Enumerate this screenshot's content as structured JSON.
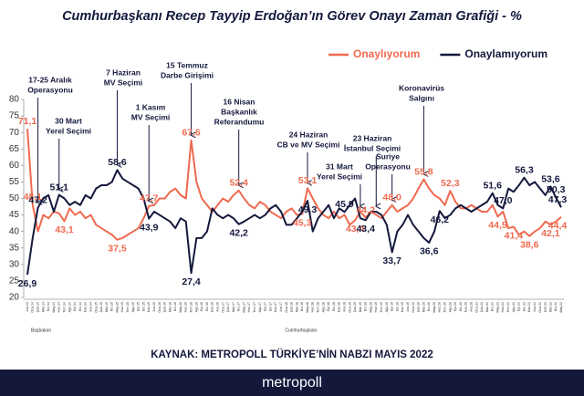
{
  "chart_data": {
    "type": "line",
    "title": "Cumhurbaşkanı Recep Tayyip Erdoğan’ın Görev Onayı Zaman Grafiği - %",
    "source": "KAYNAK: METROPOLL TÜRKİYE’NİN NABZI MAYIS 2022",
    "brand": "metropoll",
    "legend": "top-right",
    "ylim": [
      20,
      80
    ],
    "yticks": [
      20,
      25,
      30,
      35,
      40,
      45,
      50,
      55,
      60,
      65,
      70,
      75,
      80
    ],
    "period_labels": [
      "Başbakan",
      "Cumhurbaşkanı"
    ],
    "categories": [
      "Ara.13",
      "Oca.14",
      "Şub.14",
      "Mar.14",
      "Nis.14",
      "May.14",
      "Haz.14",
      "Tem.14",
      "Ağu.14",
      "Eyl.14",
      "Eki.14",
      "Kas.14",
      "Ara.14",
      "Oca.15",
      "Şub.15",
      "Mar.15",
      "Nis.15",
      "May.15",
      "Haz.15",
      "Tem.15",
      "Ağu.15",
      "Eyl.15",
      "Eki.15",
      "Kas.15",
      "Ara.15",
      "Oca.16",
      "Şub.16",
      "Mar.16",
      "Nis.16",
      "May.16",
      "Haz.16",
      "Tem.16",
      "Ağu.16",
      "Eyl.16",
      "Eki.16",
      "Kas.16",
      "Ara.16",
      "Oca.17",
      "Şub.17",
      "Mar.17",
      "Nis.17",
      "May.17",
      "Haz.17",
      "Tem.17",
      "Ağu.17",
      "Eyl.17",
      "Eki.17",
      "Kas.17",
      "Ara.17",
      "Oca.18",
      "Şub.18",
      "Mar.18",
      "Nis.18",
      "May.18",
      "Haz.18",
      "Tem.18",
      "Ağu.18",
      "Eyl.18",
      "Eki.18",
      "Kas.18",
      "Ara.18",
      "Oca.19",
      "Şub.19",
      "Mar.19",
      "Nis.19",
      "May.19",
      "Haz.19",
      "Tem.19",
      "Ağu.19",
      "Eyl.19",
      "Eki.19",
      "Kas.19",
      "Ara.19",
      "Oca.20",
      "Şub.20",
      "Mar.20",
      "Nis.20",
      "May.20",
      "Haz.20",
      "Tem.20",
      "Ağu.20",
      "Eyl.20",
      "Eki.20",
      "Kas.20",
      "Ara.20",
      "Oca.21",
      "Şub.21",
      "Mar.21",
      "Nis.21",
      "May.21",
      "Haz.21",
      "Tem.21",
      "Ağu.21",
      "Eyl.21",
      "Eki.21",
      "Kas.21",
      "Ara.21",
      "Oca.22",
      "Şub.22",
      "Mar.22",
      "Nis.22",
      "May.22"
    ],
    "series": [
      {
        "name": "Onaylıyorum",
        "color": "#ef6a50",
        "values": [
          71.1,
          48.1,
          40,
          45,
          44,
          46,
          45.5,
          43.1,
          47,
          45,
          46,
          44,
          45,
          42,
          41,
          40,
          39,
          37.5,
          38,
          39,
          40,
          41,
          44,
          47.7,
          48,
          50,
          50,
          52,
          53,
          51,
          50,
          67.6,
          55,
          50,
          48,
          46,
          48,
          50,
          49,
          51,
          52.4,
          50,
          48,
          47,
          49,
          48,
          46,
          45,
          44,
          46,
          47,
          45,
          45.3,
          53.1,
          50,
          47,
          45,
          44,
          46,
          44,
          45,
          42,
          43.4,
          46,
          44.2,
          46,
          45,
          44,
          46,
          48.0,
          46,
          47,
          48,
          50,
          53,
          55.8,
          53,
          51,
          50,
          48,
          52.3,
          49,
          47,
          47,
          48,
          47,
          46,
          46,
          48,
          44.5,
          46,
          41,
          41.4,
          39,
          40,
          38.6,
          40,
          41,
          43,
          42.1,
          43,
          44.4
        ],
        "value_labels": [
          "71,1",
          "48,1",
          null,
          null,
          null,
          null,
          null,
          "43,1",
          null,
          null,
          null,
          null,
          null,
          null,
          null,
          null,
          null,
          "37,5",
          null,
          null,
          null,
          null,
          null,
          "47,7",
          null,
          null,
          null,
          null,
          null,
          null,
          null,
          "67,6",
          null,
          null,
          null,
          null,
          null,
          null,
          null,
          null,
          "52,4",
          null,
          null,
          null,
          null,
          null,
          null,
          null,
          null,
          null,
          null,
          null,
          "45,3",
          "53,1",
          null,
          null,
          null,
          null,
          null,
          null,
          null,
          null,
          "43,4",
          null,
          "44,2",
          null,
          null,
          null,
          null,
          "48,0",
          null,
          null,
          null,
          null,
          null,
          "55,8",
          null,
          null,
          null,
          null,
          "52,3",
          null,
          null,
          null,
          null,
          null,
          null,
          null,
          null,
          "44,5",
          null,
          null,
          "41,4",
          null,
          null,
          "38,6",
          null,
          null,
          null,
          "42,1",
          null,
          "44,4"
        ]
      },
      {
        "name": "Onaylamıyorum",
        "color": "#14193c",
        "values": [
          26.9,
          38,
          47.2,
          50,
          51,
          46,
          51.1,
          50,
          48,
          49,
          48,
          51,
          50,
          53,
          54,
          54,
          55,
          58.6,
          56,
          55,
          54,
          53,
          50,
          43.9,
          46,
          45,
          44,
          43,
          41,
          44,
          43,
          27.4,
          38,
          38,
          40,
          47,
          45,
          44,
          45,
          44,
          42.2,
          43,
          44,
          45,
          44,
          45,
          47,
          48,
          46,
          42,
          42,
          44,
          46,
          49.3,
          40,
          44,
          46,
          48,
          44,
          47,
          45.9,
          48,
          50,
          44,
          43.4,
          46,
          46,
          45,
          42,
          33.7,
          40,
          42,
          45,
          42,
          40,
          38,
          36.6,
          40,
          46.2,
          44,
          45,
          47,
          48,
          47,
          46,
          47,
          48,
          49,
          51.6,
          48,
          47.0,
          53,
          52,
          54,
          56.3,
          54,
          55,
          53,
          51,
          53.6,
          50.3,
          47.3
        ],
        "value_labels": [
          "26,9",
          null,
          "47,2",
          null,
          null,
          null,
          "51,1",
          null,
          null,
          null,
          null,
          null,
          null,
          null,
          null,
          null,
          null,
          "58,6",
          null,
          null,
          null,
          null,
          null,
          "43,9",
          null,
          null,
          null,
          null,
          null,
          null,
          null,
          "27,4",
          null,
          null,
          null,
          null,
          null,
          null,
          null,
          null,
          "42,2",
          null,
          null,
          null,
          null,
          null,
          null,
          null,
          null,
          null,
          null,
          null,
          null,
          "49,3",
          null,
          null,
          null,
          null,
          null,
          null,
          "45,9",
          null,
          null,
          null,
          "43,4",
          null,
          null,
          null,
          null,
          "33,7",
          null,
          null,
          null,
          null,
          null,
          null,
          "36,6",
          null,
          "46,2",
          null,
          null,
          null,
          null,
          null,
          null,
          null,
          null,
          null,
          "51,6",
          null,
          "47,0",
          null,
          null,
          null,
          "56,3",
          null,
          null,
          null,
          null,
          "53,6",
          "50,3",
          "47,3"
        ]
      }
    ],
    "annotations": [
      [
        "17-25 Aralık",
        "Operasyonu"
      ],
      [
        "30 Mart",
        "Yerel Seçimi"
      ],
      [
        "7 Haziran",
        "MV Seçimi"
      ],
      [
        "1 Kasım",
        "MV Seçimi"
      ],
      [
        "15 Temmuz",
        "Darbe Girişimi"
      ],
      [
        "16 Nisan",
        "Başkanlık",
        "Referandumu"
      ],
      [
        "24 Haziran",
        "CB  ve MV Seçimi"
      ],
      [
        "31 Mart",
        "Yerel Seçimi"
      ],
      [
        "23 Haziran",
        "İstanbul Seçimi"
      ],
      [
        "Suriye",
        "Operasyonu"
      ],
      [
        "Koronavirüs",
        "Salgını"
      ]
    ]
  }
}
